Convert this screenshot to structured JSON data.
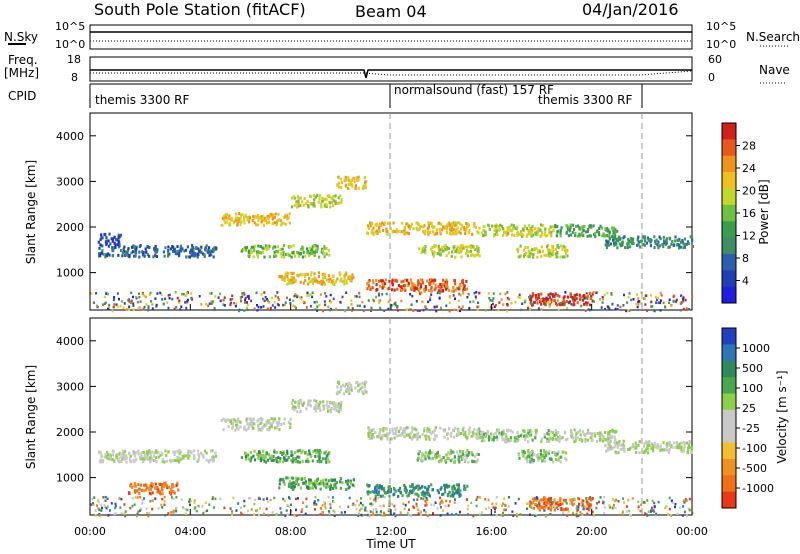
{
  "header": {
    "station": "South Pole Station (fitACF)",
    "beam": "Beam 04",
    "date": "04/Jan/2016"
  },
  "aux_panels": {
    "nsky_label": "N.Sky",
    "nsearch_label": "N.Search",
    "freq_label_line1": "Freq.",
    "freq_label_line2": "[MHz]",
    "nave_label": "Nave",
    "cpid_label": "CPID",
    "noise_ticks_left": [
      "10^5",
      "10^0"
    ],
    "noise_ticks_right": [
      "10^5",
      "10^0"
    ],
    "freq_ticks": [
      "18",
      "8"
    ],
    "nave_ticks": [
      "60",
      "0"
    ],
    "cpid_segments": [
      {
        "label": "themis 3300 RF",
        "start_hour": 0
      },
      {
        "label": "normalsound (fast) 157 RF",
        "start_hour": 12
      },
      {
        "label": "themis 3300 RF",
        "start_hour": 22
      }
    ]
  },
  "chart_data": [
    {
      "type": "heatmap",
      "name": "power",
      "xlabel": "",
      "ylabel": "Slant Range [km]",
      "xlim": [
        0,
        24
      ],
      "ylim": [
        180,
        4500
      ],
      "yticks": [
        1000,
        2000,
        3000,
        4000
      ],
      "colorbar": {
        "label": "Power [dB]",
        "ticks": [
          "4",
          "8",
          "12",
          "16",
          "20",
          "24",
          "28"
        ],
        "colors": [
          "#1e1ee0",
          "#1f3fb0",
          "#2b5fae",
          "#3d8e66",
          "#3a9d4a",
          "#6dc040",
          "#c4d82c",
          "#f0c020",
          "#f0921e",
          "#e8581c",
          "#d0201a"
        ]
      },
      "features": [
        {
          "start_hour": 0.3,
          "end_hour": 5.0,
          "range_km": 1500,
          "level": 2
        },
        {
          "start_hour": 0.3,
          "end_hour": 1.2,
          "range_km": 1750,
          "level": 1
        },
        {
          "start_hour": 5.2,
          "end_hour": 8.0,
          "range_km": 2200,
          "level": 7
        },
        {
          "start_hour": 6.0,
          "end_hour": 9.5,
          "range_km": 1500,
          "level": 5
        },
        {
          "start_hour": 8.0,
          "end_hour": 10.0,
          "range_km": 2600,
          "level": 6
        },
        {
          "start_hour": 9.8,
          "end_hour": 11.0,
          "range_km": 3000,
          "level": 7
        },
        {
          "start_hour": 11.0,
          "end_hour": 15.5,
          "range_km": 2000,
          "level": 7
        },
        {
          "start_hour": 13.0,
          "end_hour": 15.5,
          "range_km": 1500,
          "level": 6
        },
        {
          "start_hour": 11.0,
          "end_hour": 15.0,
          "range_km": 750,
          "level": 9
        },
        {
          "start_hour": 7.5,
          "end_hour": 10.5,
          "range_km": 900,
          "level": 7
        },
        {
          "start_hour": 15.5,
          "end_hour": 18.5,
          "range_km": 1950,
          "level": 6
        },
        {
          "start_hour": 17.0,
          "end_hour": 19.0,
          "range_km": 1500,
          "level": 6
        },
        {
          "start_hour": 17.5,
          "end_hour": 20.0,
          "range_km": 450,
          "level": 10
        },
        {
          "start_hour": 18.5,
          "end_hour": 21.0,
          "range_km": 1950,
          "level": 4
        },
        {
          "start_hour": 20.5,
          "end_hour": 24.0,
          "range_km": 1700,
          "level": 3
        }
      ]
    },
    {
      "type": "heatmap",
      "name": "velocity",
      "xlabel": "Time UT",
      "ylabel": "Slant Range [km]",
      "xlim": [
        0,
        24
      ],
      "ylim": [
        180,
        4500
      ],
      "yticks": [
        1000,
        2000,
        3000,
        4000
      ],
      "xticks": [
        "00:00",
        "04:00",
        "08:00",
        "12:00",
        "16:00",
        "20:00",
        "00:00"
      ],
      "colorbar": {
        "label": "Velocity [m s⁻¹]",
        "ticks": [
          "1000",
          "500",
          "100",
          "25",
          "-25",
          "-100",
          "-500",
          "-1000"
        ],
        "colors": [
          "#2040c0",
          "#2e74b8",
          "#2e8a5a",
          "#4aa84c",
          "#8cd048",
          "#c8c8c8",
          "#c8c8c8",
          "#f0c030",
          "#f09020",
          "#f07018",
          "#e83818"
        ]
      },
      "features": [
        {
          "start_hour": 0.3,
          "end_hour": 5.0,
          "range_km": 1500,
          "level": 5
        },
        {
          "start_hour": 5.2,
          "end_hour": 8.0,
          "range_km": 2200,
          "level": 5
        },
        {
          "start_hour": 6.0,
          "end_hour": 9.5,
          "range_km": 1500,
          "level": 3
        },
        {
          "start_hour": 8.0,
          "end_hour": 10.0,
          "range_km": 2600,
          "level": 5
        },
        {
          "start_hour": 9.8,
          "end_hour": 11.0,
          "range_km": 3000,
          "level": 5
        },
        {
          "start_hour": 11.0,
          "end_hour": 15.5,
          "range_km": 2000,
          "level": 5
        },
        {
          "start_hour": 13.0,
          "end_hour": 15.5,
          "range_km": 1500,
          "level": 4
        },
        {
          "start_hour": 11.0,
          "end_hour": 15.0,
          "range_km": 750,
          "level": 2
        },
        {
          "start_hour": 7.5,
          "end_hour": 10.5,
          "range_km": 900,
          "level": 3
        },
        {
          "start_hour": 15.5,
          "end_hour": 18.5,
          "range_km": 1950,
          "level": 4
        },
        {
          "start_hour": 17.0,
          "end_hour": 19.0,
          "range_km": 1500,
          "level": 4
        },
        {
          "start_hour": 17.5,
          "end_hour": 20.0,
          "range_km": 450,
          "level": 9
        },
        {
          "start_hour": 1.5,
          "end_hour": 3.5,
          "range_km": 800,
          "level": 9
        },
        {
          "start_hour": 18.5,
          "end_hour": 21.0,
          "range_km": 1950,
          "level": 5
        },
        {
          "start_hour": 20.5,
          "end_hour": 24.0,
          "range_km": 1700,
          "level": 5
        }
      ]
    }
  ]
}
